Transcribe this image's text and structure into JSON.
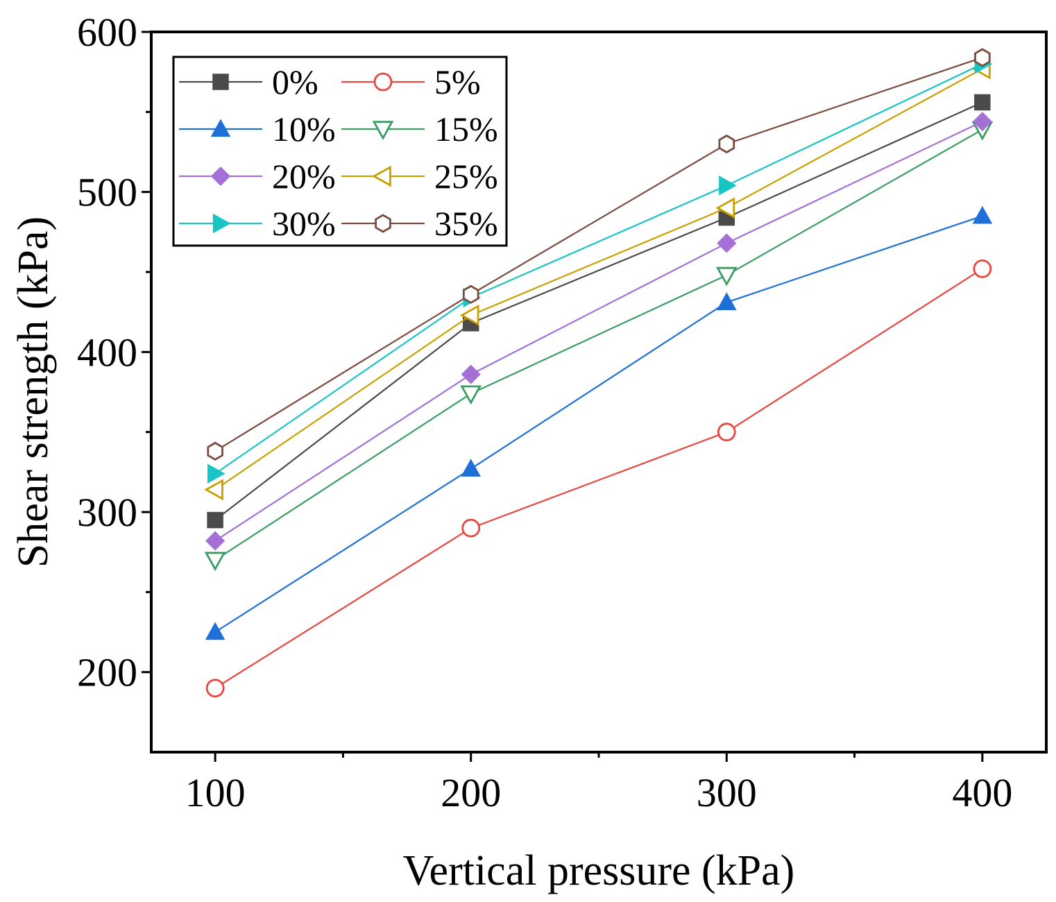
{
  "chart_data": {
    "type": "line",
    "title": "",
    "xlabel": "Vertical pressure (kPa)",
    "ylabel": "Shear strength (kPa)",
    "x": [
      100,
      200,
      300,
      400
    ],
    "xlim": [
      75,
      425
    ],
    "ylim": [
      150,
      600
    ],
    "xticks": [
      100,
      200,
      300,
      400
    ],
    "xticks_minor": [
      150,
      250,
      350
    ],
    "yticks": [
      200,
      300,
      400,
      500,
      600
    ],
    "yticks_minor": [
      250,
      350,
      450,
      550
    ],
    "xtick_labels": [
      "100",
      "200",
      "300",
      "400"
    ],
    "ytick_labels": [
      "200",
      "300",
      "400",
      "500",
      "600"
    ],
    "grid": false,
    "legend_position": "top-left",
    "series": [
      {
        "name": "0%",
        "color": "#4a4a4a",
        "marker": "square-filled",
        "values": [
          295,
          418,
          484,
          556
        ]
      },
      {
        "name": "5%",
        "color": "#e8463f",
        "marker": "circle-open",
        "values": [
          190,
          290,
          350,
          452
        ]
      },
      {
        "name": "10%",
        "color": "#1f6fd8",
        "marker": "triangle-up-filled",
        "values": [
          225,
          327,
          431,
          485
        ]
      },
      {
        "name": "15%",
        "color": "#3a9e62",
        "marker": "triangle-down-open",
        "values": [
          270,
          374,
          448,
          539
        ]
      },
      {
        "name": "20%",
        "color": "#a56fd8",
        "marker": "diamond-filled",
        "values": [
          282,
          386,
          468,
          544
        ]
      },
      {
        "name": "25%",
        "color": "#c9a000",
        "marker": "triangle-left-open",
        "values": [
          314,
          423,
          490,
          577
        ]
      },
      {
        "name": "30%",
        "color": "#18c4c4",
        "marker": "triangle-right-filled",
        "values": [
          324,
          434,
          504,
          580
        ]
      },
      {
        "name": "35%",
        "color": "#7b4a3e",
        "marker": "hexagon-open",
        "values": [
          338,
          436,
          530,
          584
        ]
      }
    ]
  }
}
